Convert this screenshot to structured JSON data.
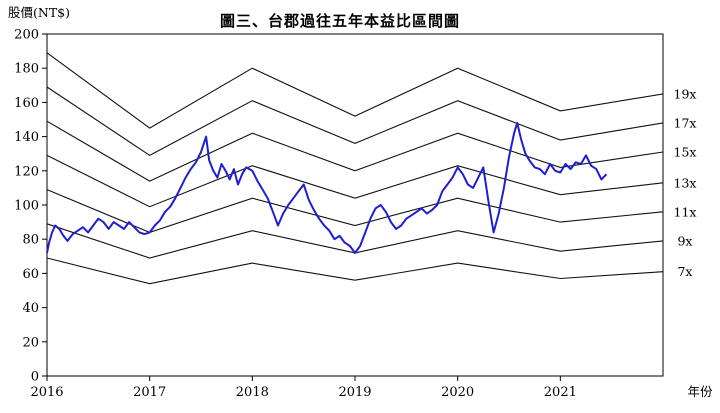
{
  "chart_data": {
    "type": "line",
    "title": "圖三、台郡過往五年本益比區間圖",
    "ylabel": "股價(NT$)",
    "xlabel": "年份",
    "ylim": [
      0,
      200
    ],
    "yticks": [
      "0",
      "20",
      "40",
      "60",
      "80",
      "100",
      "120",
      "140",
      "160",
      "180",
      "200"
    ],
    "xlim": [
      2016,
      2022
    ],
    "xticks": [
      "2016",
      "2017",
      "2018",
      "2019",
      "2020",
      "2021"
    ],
    "grid": false,
    "colors": {
      "price": "#1e1ed2",
      "bands": "#111111"
    },
    "pe_bands": [
      {
        "label": "19x",
        "x": [
          2016,
          2017,
          2018,
          2019,
          2020,
          2021,
          2022
        ],
        "values": [
          189,
          145,
          180,
          152,
          180,
          155,
          165
        ]
      },
      {
        "label": "17x",
        "x": [
          2016,
          2017,
          2018,
          2019,
          2020,
          2021,
          2022
        ],
        "values": [
          169,
          129,
          161,
          136,
          161,
          138,
          148
        ]
      },
      {
        "label": "15x",
        "x": [
          2016,
          2017,
          2018,
          2019,
          2020,
          2021,
          2022
        ],
        "values": [
          149,
          114,
          142,
          120,
          142,
          122,
          131
        ]
      },
      {
        "label": "13x",
        "x": [
          2016,
          2017,
          2018,
          2019,
          2020,
          2021,
          2022
        ],
        "values": [
          129,
          99,
          123,
          104,
          123,
          106,
          113
        ]
      },
      {
        "label": "11x",
        "x": [
          2016,
          2017,
          2018,
          2019,
          2020,
          2021,
          2022
        ],
        "values": [
          109,
          84,
          104,
          88,
          104,
          90,
          96
        ]
      },
      {
        "label": "9x",
        "x": [
          2016,
          2017,
          2018,
          2019,
          2020,
          2021,
          2022
        ],
        "values": [
          89,
          69,
          85,
          72,
          85,
          73,
          79
        ]
      },
      {
        "label": "7x",
        "x": [
          2016,
          2017,
          2018,
          2019,
          2020,
          2021,
          2022
        ],
        "values": [
          69,
          54,
          66,
          56,
          66,
          57,
          61
        ]
      }
    ],
    "series": [
      {
        "x": [
          2016.0,
          2016.02,
          2016.05,
          2016.08,
          2016.12,
          2016.16,
          2016.2,
          2016.25,
          2016.3,
          2016.35,
          2016.4,
          2016.45,
          2016.5,
          2016.55,
          2016.6,
          2016.65,
          2016.7,
          2016.75,
          2016.8,
          2016.85,
          2016.9,
          2016.95,
          2017.0,
          2017.05,
          2017.1,
          2017.15,
          2017.2,
          2017.25,
          2017.3,
          2017.35,
          2017.4,
          2017.45,
          2017.5,
          2017.55,
          2017.58,
          2017.62,
          2017.66,
          2017.7,
          2017.74,
          2017.78,
          2017.82,
          2017.86,
          2017.9,
          2017.94,
          2018.0,
          2018.05,
          2018.1,
          2018.15,
          2018.2,
          2018.25,
          2018.3,
          2018.35,
          2018.4,
          2018.45,
          2018.5,
          2018.55,
          2018.6,
          2018.65,
          2018.7,
          2018.75,
          2018.8,
          2018.85,
          2018.9,
          2018.95,
          2019.0,
          2019.05,
          2019.1,
          2019.15,
          2019.2,
          2019.25,
          2019.3,
          2019.35,
          2019.4,
          2019.45,
          2019.5,
          2019.55,
          2019.6,
          2019.65,
          2019.7,
          2019.75,
          2019.8,
          2019.85,
          2019.9,
          2019.95,
          2020.0,
          2020.05,
          2020.1,
          2020.15,
          2020.2,
          2020.25,
          2020.3,
          2020.35,
          2020.4,
          2020.45,
          2020.5,
          2020.55,
          2020.58,
          2020.62,
          2020.66,
          2020.7,
          2020.75,
          2020.8,
          2020.85,
          2020.9,
          2020.95,
          2021.0,
          2021.05,
          2021.1,
          2021.15,
          2021.2,
          2021.25,
          2021.3,
          2021.35,
          2021.4,
          2021.45
        ],
        "values": [
          72,
          78,
          84,
          88,
          86,
          82,
          79,
          83,
          85,
          87,
          84,
          88,
          92,
          90,
          86,
          90,
          88,
          86,
          90,
          87,
          84,
          83,
          84,
          88,
          91,
          96,
          99,
          104,
          110,
          116,
          121,
          125,
          131,
          140,
          126,
          120,
          116,
          124,
          120,
          115,
          121,
          112,
          118,
          122,
          120,
          114,
          109,
          104,
          96,
          88,
          95,
          100,
          104,
          108,
          112,
          103,
          97,
          92,
          88,
          85,
          80,
          82,
          78,
          76,
          72,
          76,
          84,
          92,
          98,
          100,
          96,
          90,
          86,
          88,
          92,
          94,
          96,
          98,
          95,
          97,
          100,
          108,
          112,
          116,
          122,
          118,
          112,
          110,
          116,
          122,
          102,
          84,
          95,
          110,
          128,
          142,
          148,
          138,
          130,
          126,
          122,
          121,
          118,
          124,
          120,
          119,
          124,
          121,
          125,
          124,
          129,
          123,
          121,
          115,
          118
        ]
      }
    ]
  }
}
